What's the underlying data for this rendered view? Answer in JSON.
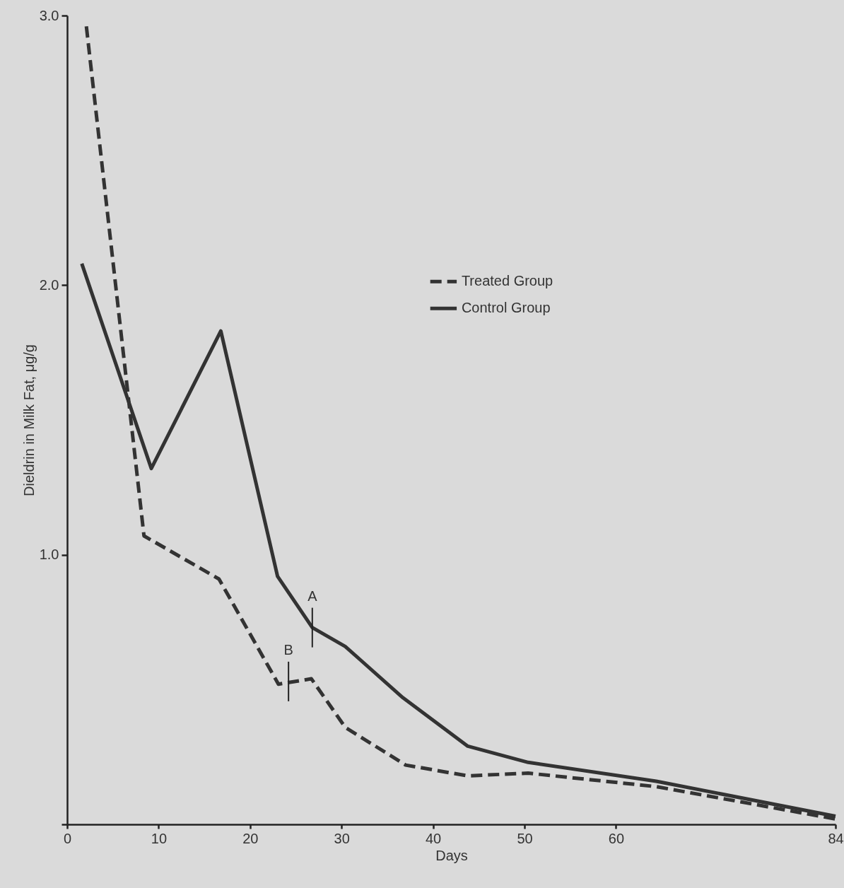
{
  "chart_data": {
    "type": "line",
    "xlabel": "Days",
    "ylabel": "Dieldrin in Milk Fat, μg/g",
    "xlim": [
      0,
      84
    ],
    "xticks": [
      0,
      10,
      20,
      30,
      40,
      50,
      60,
      84
    ],
    "ylim": [
      0,
      3.0
    ],
    "yticks": [
      {
        "value": 0,
        "label": null
      },
      {
        "value": 1.0,
        "label": "1.0"
      },
      {
        "value": 2.0,
        "label": "2.0"
      },
      {
        "value": 3.0,
        "label": "3.0"
      }
    ],
    "legend": "top right",
    "marker": "none",
    "series": [
      {
        "name": "Treated Group",
        "color": "#333333",
        "line_style": "dashed",
        "x": [
          2.1,
          8.4,
          16.6,
          23.1,
          26.7,
          30.4,
          37,
          43.8,
          50.4,
          64.4,
          84
        ],
        "values": [
          2.96,
          1.07,
          0.91,
          0.52,
          0.54,
          0.36,
          0.22,
          0.18,
          0.19,
          0.14,
          0.02
        ]
      },
      {
        "name": "Control Group",
        "color": "#333333",
        "line_style": "solid",
        "x": [
          1.6,
          9.2,
          16.8,
          23,
          26.8,
          30.4,
          36.7,
          43.8,
          50.4,
          64.4,
          84
        ],
        "values": [
          2.08,
          1.32,
          1.83,
          0.92,
          0.73,
          0.66,
          0.47,
          0.29,
          0.23,
          0.16,
          0.03
        ]
      }
    ],
    "annotations": [
      {
        "text": "A",
        "x": 26.8,
        "y": 0.73
      },
      {
        "text": "B",
        "x": 24.2,
        "y": 0.53
      }
    ]
  }
}
